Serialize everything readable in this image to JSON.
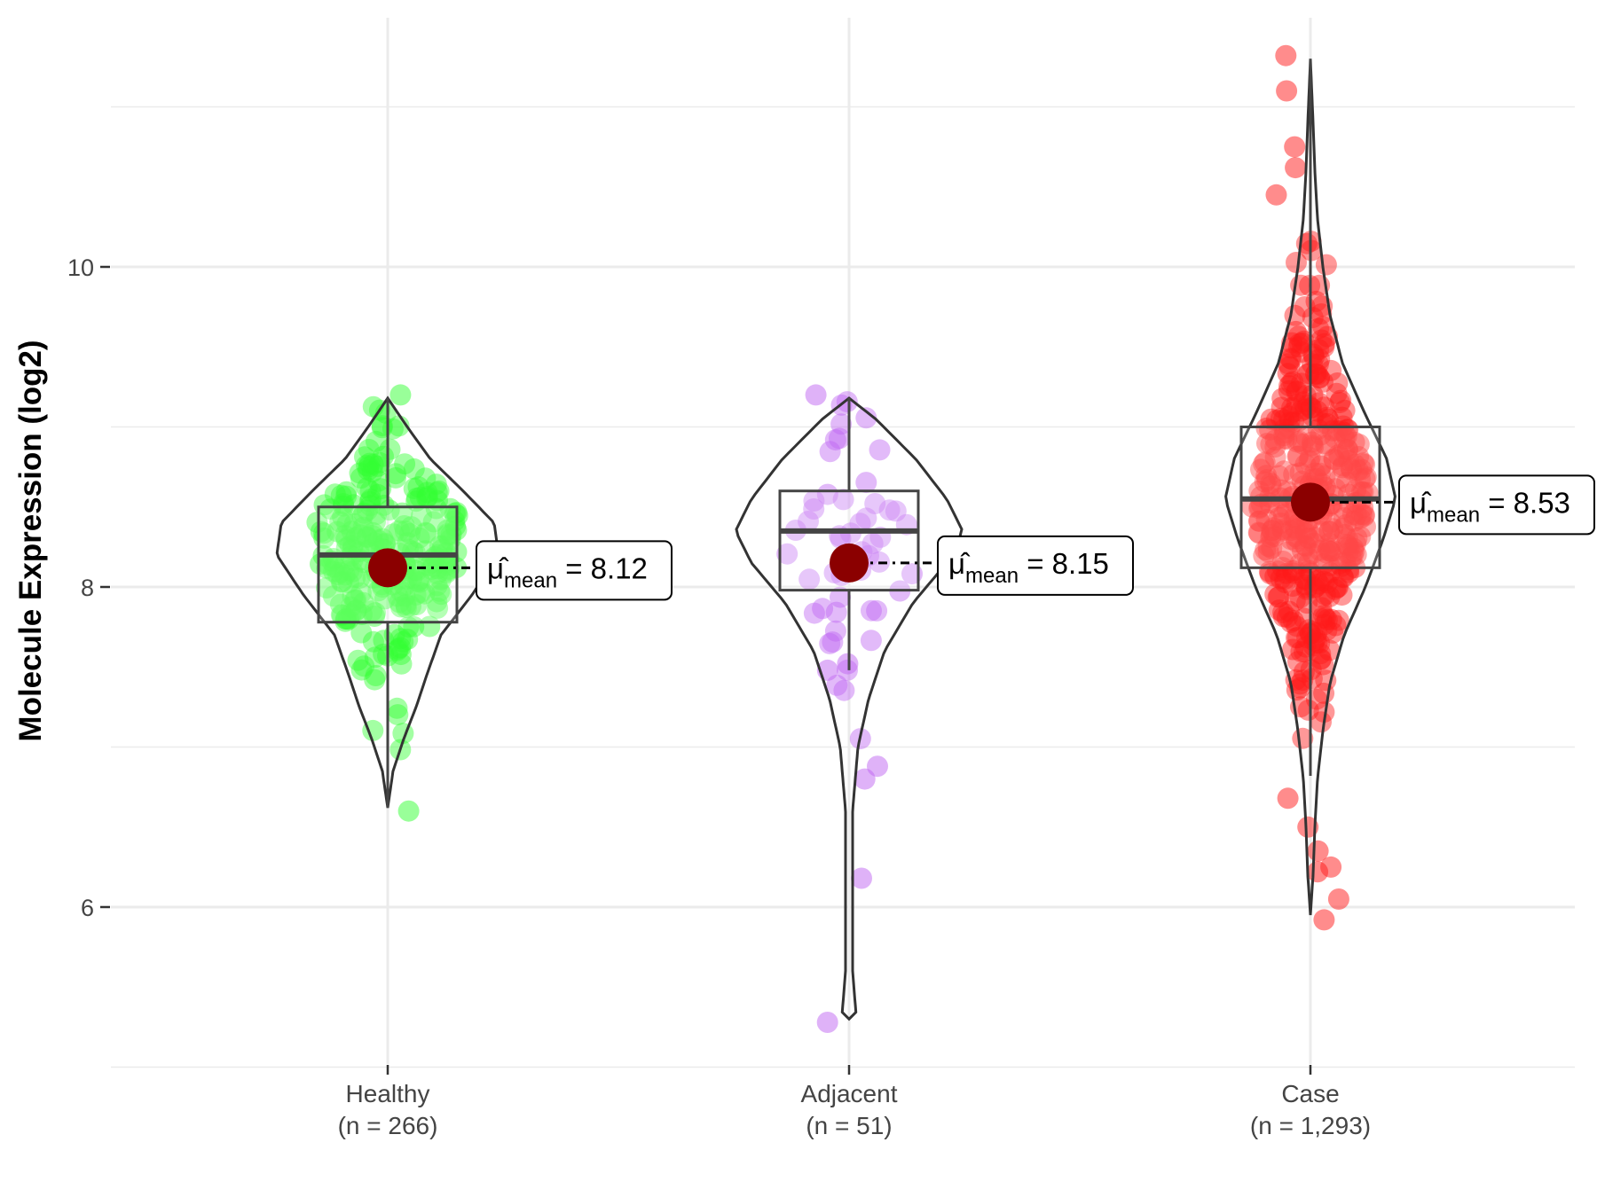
{
  "chart_data": {
    "type": "violin",
    "ylabel": "Molecule Expression (log2)",
    "xlabel": "",
    "ylim": [
      4.8,
      11.6
    ],
    "y_ticks": [
      6,
      8,
      10
    ],
    "y_tick_labels": [
      "6",
      "8",
      "10"
    ],
    "grid": true,
    "categories": [
      {
        "name": "Healthy",
        "n_label": "(n = 266)",
        "n": 266,
        "color": "#33ff33",
        "mean": 8.12,
        "mean_label": "8.12",
        "box": {
          "q1": 7.78,
          "median": 8.2,
          "q3": 8.5,
          "whisker_low": 6.62,
          "whisker_high": 9.18
        },
        "violin_range": [
          6.62,
          9.18
        ],
        "outliers": [
          6.6,
          9.2
        ]
      },
      {
        "name": "Adjacent",
        "n_label": "(n = 51)",
        "n": 51,
        "color": "#bf66f2",
        "mean": 8.15,
        "mean_label": "8.15",
        "box": {
          "q1": 7.98,
          "median": 8.35,
          "q3": 8.6,
          "whisker_low": 7.48,
          "whisker_high": 9.18
        },
        "violin_range": [
          5.3,
          9.18
        ],
        "outliers": [
          5.28,
          6.18,
          6.8,
          6.88,
          7.48,
          7.52,
          9.2
        ]
      },
      {
        "name": "Case",
        "n_label": "(n = 1,293)",
        "n": 1293,
        "color": "#ff1a1a",
        "mean": 8.53,
        "mean_label": "8.53",
        "box": {
          "q1": 8.12,
          "median": 8.55,
          "q3": 9.0,
          "whisker_low": 6.82,
          "whisker_high": 11.3
        },
        "violin_range": [
          5.95,
          11.3
        ],
        "outliers": [
          5.92,
          6.05,
          6.22,
          6.25,
          6.35,
          6.5,
          6.68,
          10.45,
          10.62,
          10.75,
          11.1,
          11.32
        ]
      }
    ],
    "mean_symbol": "μ̂",
    "mean_subscript": "mean"
  }
}
